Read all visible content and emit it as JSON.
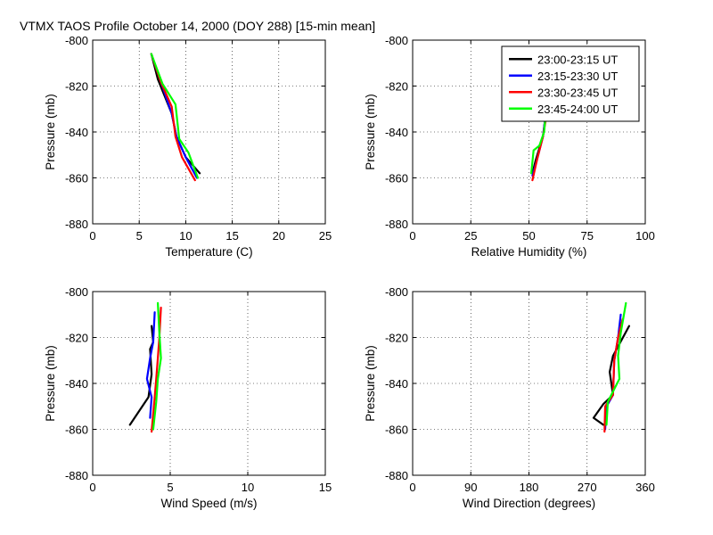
{
  "figure_title": "VTMX TAOS Profile   October 14, 2000 (DOY 288) [15-min mean]",
  "colors": {
    "series": [
      "#000000",
      "#0000ff",
      "#ff0000",
      "#00ff00"
    ]
  },
  "legend": [
    "23:00-23:15 UT",
    "23:15-23:30 UT",
    "23:30-23:45 UT",
    "23:45-24:00 UT"
  ],
  "chart_data": [
    {
      "type": "line",
      "xlabel": "Temperature (C)",
      "ylabel": "Pressure (mb)",
      "xlim": [
        0,
        25
      ],
      "ylim": [
        -880,
        -800
      ],
      "xticks": [
        0,
        5,
        10,
        15,
        20,
        25
      ],
      "yticks": [
        -800,
        -820,
        -840,
        -860,
        -880
      ],
      "grid": true,
      "series": [
        {
          "name": "23:00-23:15 UT",
          "x": [
            6.3,
            7.0,
            8.5,
            9.0,
            10.0,
            11.5
          ],
          "y": [
            -806,
            -817,
            -832,
            -842,
            -851,
            -858
          ]
        },
        {
          "name": "23:15-23:30 UT",
          "x": [
            6.3,
            7.3,
            8.5,
            9.0,
            10.0,
            11.2
          ],
          "y": [
            -806,
            -818,
            -832,
            -842,
            -851,
            -860
          ]
        },
        {
          "name": "23:30-23:45 UT",
          "x": [
            6.3,
            7.3,
            8.5,
            8.9,
            9.6,
            11.0
          ],
          "y": [
            -806,
            -818,
            -829,
            -842,
            -851,
            -861
          ]
        },
        {
          "name": "23:45-24:00 UT",
          "x": [
            6.3,
            7.5,
            8.9,
            9.3,
            10.3,
            11.3
          ],
          "y": [
            -806,
            -819,
            -828,
            -843,
            -849,
            -860
          ]
        }
      ]
    },
    {
      "type": "line",
      "xlabel": "Relative Humidity (%)",
      "ylabel": "Pressure (mb)",
      "xlim": [
        0,
        100
      ],
      "ylim": [
        -880,
        -800
      ],
      "xticks": [
        0,
        25,
        50,
        75,
        100
      ],
      "yticks": [
        -800,
        -820,
        -840,
        -860,
        -880
      ],
      "grid": true,
      "series": [
        {
          "name": "23:00-23:15 UT",
          "x": [
            51.5,
            53,
            56,
            57.5
          ],
          "y": [
            -858,
            -852,
            -842,
            -830
          ]
        },
        {
          "name": "23:15-23:30 UT",
          "x": [
            51.5,
            53.5,
            56,
            57.5
          ],
          "y": [
            -859,
            -852,
            -842,
            -830
          ]
        },
        {
          "name": "23:30-23:45 UT",
          "x": [
            51.5,
            53.5,
            56,
            58
          ],
          "y": [
            -861,
            -852,
            -842,
            -830
          ]
        },
        {
          "name": "23:45-24:00 UT",
          "x": [
            51,
            52,
            54.5,
            56.5,
            57.5
          ],
          "y": [
            -858,
            -848,
            -846,
            -840,
            -828
          ]
        }
      ]
    },
    {
      "type": "line",
      "xlabel": "Wind Speed (m/s)",
      "ylabel": "Pressure (mb)",
      "xlim": [
        0,
        15
      ],
      "ylim": [
        -880,
        -800
      ],
      "xticks": [
        0,
        5,
        10,
        15
      ],
      "yticks": [
        -800,
        -820,
        -840,
        -860,
        -880
      ],
      "grid": true,
      "series": [
        {
          "name": "23:00-23:15 UT",
          "x": [
            2.4,
            3.6,
            3.8,
            3.7,
            3.9,
            3.8
          ],
          "y": [
            -858,
            -846,
            -836,
            -825,
            -822,
            -815
          ]
        },
        {
          "name": "23:15-23:30 UT",
          "x": [
            3.7,
            3.8,
            3.5,
            3.7,
            3.9,
            4.0
          ],
          "y": [
            -855,
            -846,
            -838,
            -829,
            -822,
            -809
          ]
        },
        {
          "name": "23:30-23:45 UT",
          "x": [
            3.8,
            4.0,
            4.1,
            4.2,
            4.3,
            4.4
          ],
          "y": [
            -861,
            -846,
            -838,
            -829,
            -820,
            -807
          ]
        },
        {
          "name": "23:45-24:00 UT",
          "x": [
            3.9,
            4.1,
            4.2,
            4.4,
            4.3,
            4.2
          ],
          "y": [
            -860,
            -848,
            -838,
            -829,
            -818,
            -805
          ]
        }
      ]
    },
    {
      "type": "line",
      "xlabel": "Wind Direction (degrees)",
      "ylabel": "Pressure (mb)",
      "xlim": [
        0,
        360
      ],
      "ylim": [
        -880,
        -800
      ],
      "xticks": [
        0,
        90,
        180,
        270,
        360
      ],
      "yticks": [
        -800,
        -820,
        -840,
        -860,
        -880
      ],
      "grid": true,
      "series": [
        {
          "name": "23:00-23:15 UT",
          "x": [
            295,
            280,
            295,
            310,
            305,
            310,
            335
          ],
          "y": [
            -858,
            -855,
            -849,
            -845,
            -835,
            -828,
            -815
          ]
        },
        {
          "name": "23:15-23:30 UT",
          "x": [
            298,
            300,
            310,
            312,
            318,
            322
          ],
          "y": [
            -860,
            -850,
            -845,
            -830,
            -820,
            -810
          ]
        },
        {
          "name": "23:30-23:45 UT",
          "x": [
            297,
            298,
            310,
            312,
            318,
            325
          ],
          "y": [
            -861,
            -850,
            -845,
            -830,
            -820,
            -812
          ]
        },
        {
          "name": "23:45-24:00 UT",
          "x": [
            300,
            302,
            320,
            318,
            322,
            330
          ],
          "y": [
            -858,
            -848,
            -838,
            -828,
            -818,
            -805
          ]
        }
      ]
    }
  ]
}
